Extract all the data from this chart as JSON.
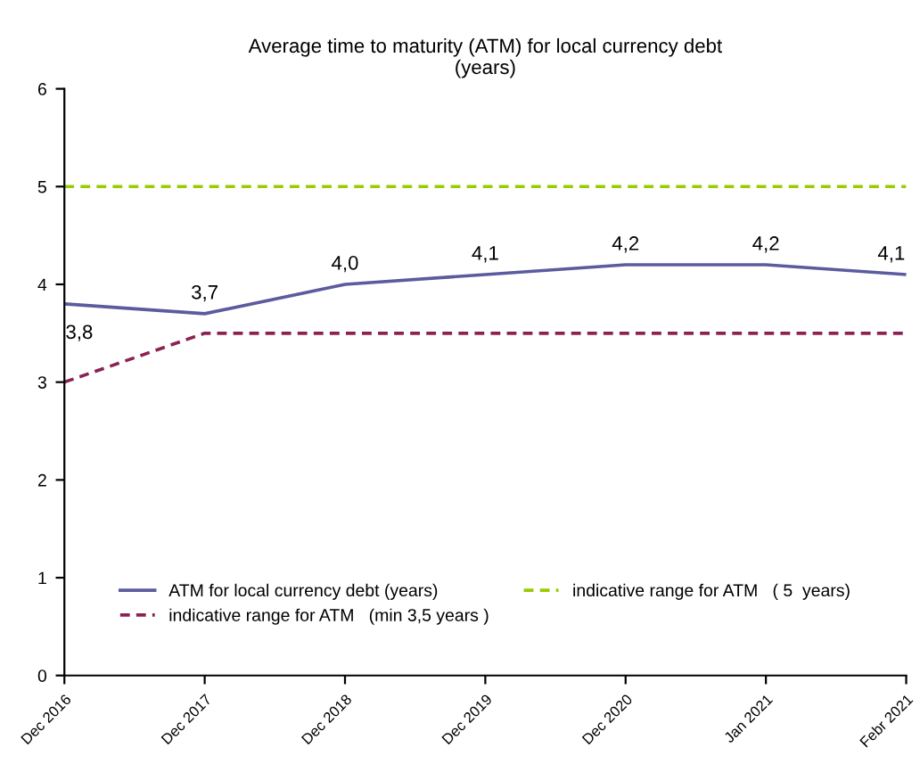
{
  "chart_data": {
    "type": "line",
    "title": "Average time to maturity (ATM) for local currency debt\n(years)",
    "categories": [
      "Dec 2016",
      "Dec 2017",
      "Dec 2018",
      "Dec 2019",
      "Dec 2020",
      "Jan 2021",
      "Febr 2021"
    ],
    "series": [
      {
        "name": "ATM for local currency debt (years)",
        "color": "#5b5b9e",
        "line_style": "solid",
        "values": [
          3.8,
          3.7,
          4.0,
          4.1,
          4.2,
          4.2,
          4.1
        ],
        "value_labels": [
          "3,8",
          "3,7",
          "4,0",
          "4,1",
          "4,2",
          "4,2",
          "4,1"
        ]
      },
      {
        "name": "indicative range for ATM   (min 3,5 years )",
        "color": "#8b2252",
        "line_style": "dashed",
        "values": [
          3.0,
          3.5,
          3.5,
          3.5,
          3.5,
          3.5,
          3.5
        ]
      },
      {
        "name": "indicative range for ATM   ( 5  years)",
        "color": "#99cc00",
        "line_style": "dashed",
        "values": [
          5,
          5,
          5,
          5,
          5,
          5,
          5
        ]
      }
    ],
    "ylim": [
      0,
      6
    ],
    "yticks": [
      0,
      1,
      2,
      3,
      4,
      5,
      6
    ],
    "grid": false,
    "legend": "bottom",
    "marker": "none"
  }
}
